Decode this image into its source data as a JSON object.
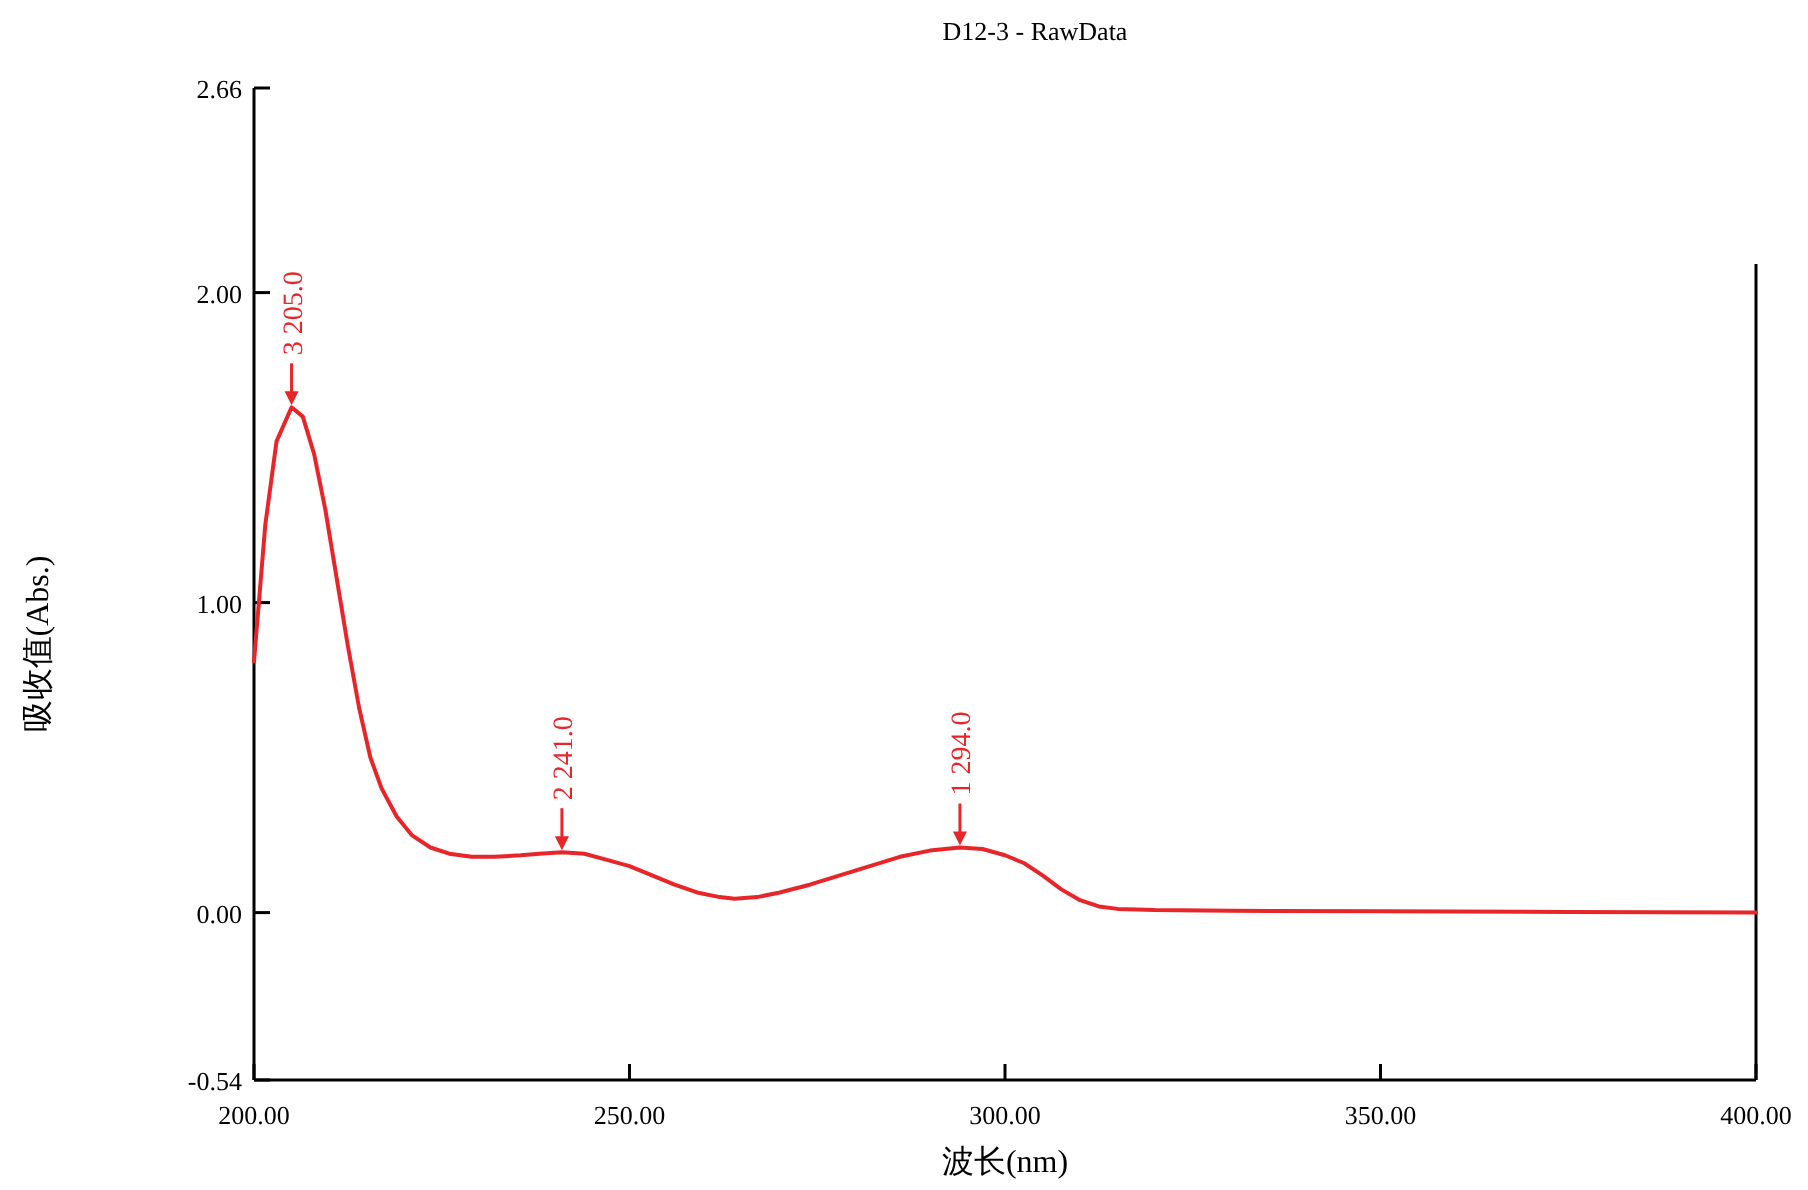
{
  "chart_data": {
    "type": "line",
    "title": "D12-3 - RawData",
    "xlabel": "波长(nm)",
    "ylabel": "吸收值(Abs.)",
    "xlim": [
      200,
      400
    ],
    "ylim": [
      -0.54,
      2.66
    ],
    "xticks": [
      {
        "value": 200,
        "label": "200.00"
      },
      {
        "value": 250,
        "label": "250.00"
      },
      {
        "value": 300,
        "label": "300.00"
      },
      {
        "value": 350,
        "label": "350.00"
      },
      {
        "value": 400,
        "label": "400.00"
      }
    ],
    "yticks": [
      {
        "value": -0.54,
        "label": "-0.54"
      },
      {
        "value": 0,
        "label": "0.00"
      },
      {
        "value": 1,
        "label": "1.00"
      },
      {
        "value": 2,
        "label": "2.00"
      },
      {
        "value": 2.66,
        "label": "2.66"
      }
    ],
    "grid": false,
    "marker": "none",
    "line_style": "solid",
    "series": [
      {
        "color": "#e8262a",
        "x": [
          200,
          201.5,
          203,
          205,
          206.5,
          208,
          209.5,
          211,
          212.5,
          214,
          215.5,
          217,
          219,
          221,
          223.5,
          226,
          229,
          232,
          235.5,
          238,
          241,
          244,
          247,
          250,
          253,
          256,
          259,
          262,
          264,
          267,
          270,
          274,
          278,
          282,
          286,
          290,
          294,
          297,
          300,
          302.5,
          305,
          307.5,
          310,
          312.5,
          315,
          320,
          330,
          350,
          375,
          400
        ],
        "values": [
          0.81,
          1.25,
          1.52,
          1.63,
          1.6,
          1.48,
          1.3,
          1.08,
          0.86,
          0.66,
          0.5,
          0.4,
          0.31,
          0.25,
          0.21,
          0.19,
          0.18,
          0.18,
          0.185,
          0.19,
          0.195,
          0.19,
          0.17,
          0.15,
          0.12,
          0.09,
          0.065,
          0.05,
          0.045,
          0.05,
          0.065,
          0.09,
          0.12,
          0.15,
          0.18,
          0.2,
          0.21,
          0.205,
          0.185,
          0.16,
          0.12,
          0.075,
          0.04,
          0.02,
          0.012,
          0.008,
          0.006,
          0.004,
          0.002,
          0.0
        ]
      }
    ],
    "annotations": [
      {
        "text": "3  205.0",
        "x": 205,
        "y": 1.63
      },
      {
        "text": "2  241.0",
        "x": 241,
        "y": 0.195
      },
      {
        "text": "1  294.0",
        "x": 294,
        "y": 0.21
      }
    ]
  }
}
